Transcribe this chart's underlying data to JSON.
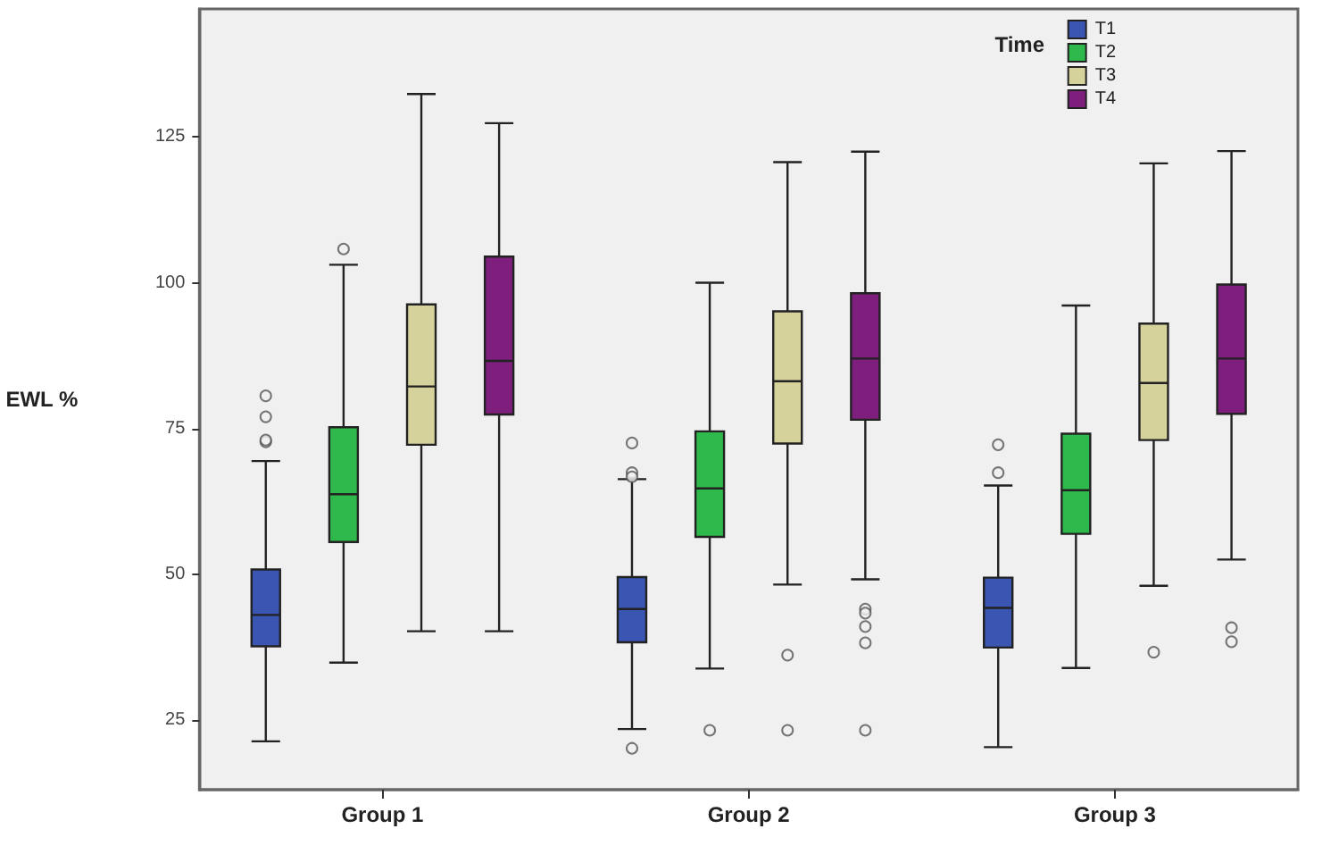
{
  "chart_data": {
    "type": "box",
    "ylabel": "EWL %",
    "legend_title": "Time",
    "legend": "top right",
    "grid": false,
    "categories": [
      "Group 1",
      "Group 2",
      "Group 3"
    ],
    "ylim": [
      13,
      147
    ],
    "yticks": [
      25,
      50,
      75,
      100,
      125
    ],
    "series": [
      {
        "name": "T1",
        "color": "#3b55b2",
        "boxes": [
          {
            "low": 21.3,
            "q1": 37.6,
            "median": 43.0,
            "q3": 50.8,
            "high": 69.4,
            "outliers": [
              80.6,
              77.0,
              72.7,
              73.0
            ]
          },
          {
            "low": 23.4,
            "q1": 38.3,
            "median": 44.0,
            "q3": 49.5,
            "high": 66.3,
            "outliers": [
              72.5,
              67.4,
              66.7,
              20.1
            ]
          },
          {
            "low": 20.3,
            "q1": 37.4,
            "median": 44.2,
            "q3": 49.4,
            "high": 65.2,
            "outliers": [
              72.2,
              67.4
            ]
          }
        ]
      },
      {
        "name": "T2",
        "color": "#2fb84b",
        "boxes": [
          {
            "low": 34.8,
            "q1": 55.5,
            "median": 63.7,
            "q3": 75.2,
            "high": 103.1,
            "outliers": [
              105.8
            ]
          },
          {
            "low": 33.8,
            "q1": 56.4,
            "median": 64.7,
            "q3": 74.5,
            "high": 100.0,
            "outliers": [
              23.2
            ]
          },
          {
            "low": 33.9,
            "q1": 56.9,
            "median": 64.4,
            "q3": 74.1,
            "high": 96.1
          }
        ]
      },
      {
        "name": "T3",
        "color": "#d6d29b",
        "boxes": [
          {
            "low": 40.2,
            "q1": 72.2,
            "median": 82.2,
            "q3": 96.3,
            "high": 132.4
          },
          {
            "low": 48.2,
            "q1": 72.4,
            "median": 83.1,
            "q3": 95.1,
            "high": 120.7,
            "outliers": [
              36.1,
              23.2
            ]
          },
          {
            "low": 48.0,
            "q1": 73.0,
            "median": 82.8,
            "q3": 93.0,
            "high": 120.5,
            "outliers": [
              36.6
            ]
          }
        ]
      },
      {
        "name": "T4",
        "color": "#7e1f7e",
        "boxes": [
          {
            "low": 40.2,
            "q1": 77.4,
            "median": 86.6,
            "q3": 104.5,
            "high": 127.4
          },
          {
            "low": 49.1,
            "q1": 76.5,
            "median": 87.0,
            "q3": 98.2,
            "high": 122.5,
            "outliers": [
              44.0,
              43.3,
              41.0,
              38.2,
              23.2
            ]
          },
          {
            "low": 52.5,
            "q1": 77.5,
            "median": 87.0,
            "q3": 99.7,
            "high": 122.6,
            "outliers": [
              40.8,
              38.4
            ]
          }
        ]
      }
    ]
  }
}
